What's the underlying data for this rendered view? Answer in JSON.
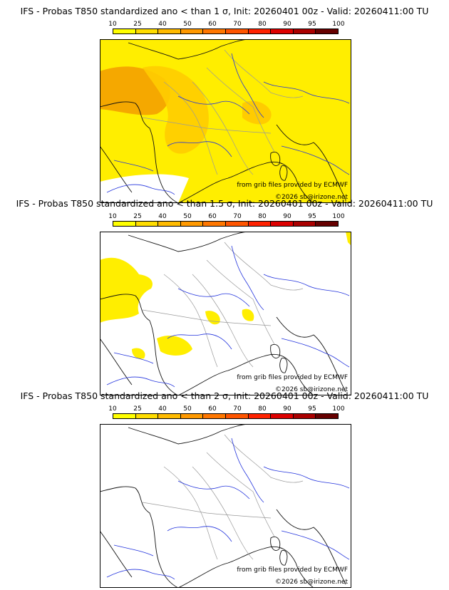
{
  "panels": [
    {
      "title": "IFS - Probas T850  standardized ano < than 1 σ, Init: 20260401 00z - Valid: 20260411:00 TU",
      "coverage": "high"
    },
    {
      "title": "IFS - Probas T850  standardized ano < than 1.5 σ, Init: 20260401 00z - Valid: 20260411:00 TU",
      "coverage": "mid"
    },
    {
      "title": "IFS - Probas T850  standardized ano < than 2 σ, Init: 20260401 00z - Valid: 20260411:00 TU",
      "coverage": "none"
    }
  ],
  "scale": {
    "labels": [
      "10",
      "25",
      "40",
      "50",
      "60",
      "70",
      "80",
      "90",
      "95",
      "100"
    ],
    "colors": [
      "#ffff00",
      "#ffdd00",
      "#ffbb00",
      "#ff9900",
      "#ff7700",
      "#ff5500",
      "#ff2200",
      "#dd0000",
      "#aa0000",
      "#660000"
    ]
  },
  "credits": {
    "source": "from grib files provided by ECMWF",
    "copyright": "©2026 sb@irizone.net"
  },
  "colors": {
    "fill_low": "#ffee00",
    "fill_mid": "#ffcc00",
    "fill_high": "#f5a800",
    "coast": "#111111",
    "rivers": "#2233dd",
    "borders": "#999999"
  }
}
